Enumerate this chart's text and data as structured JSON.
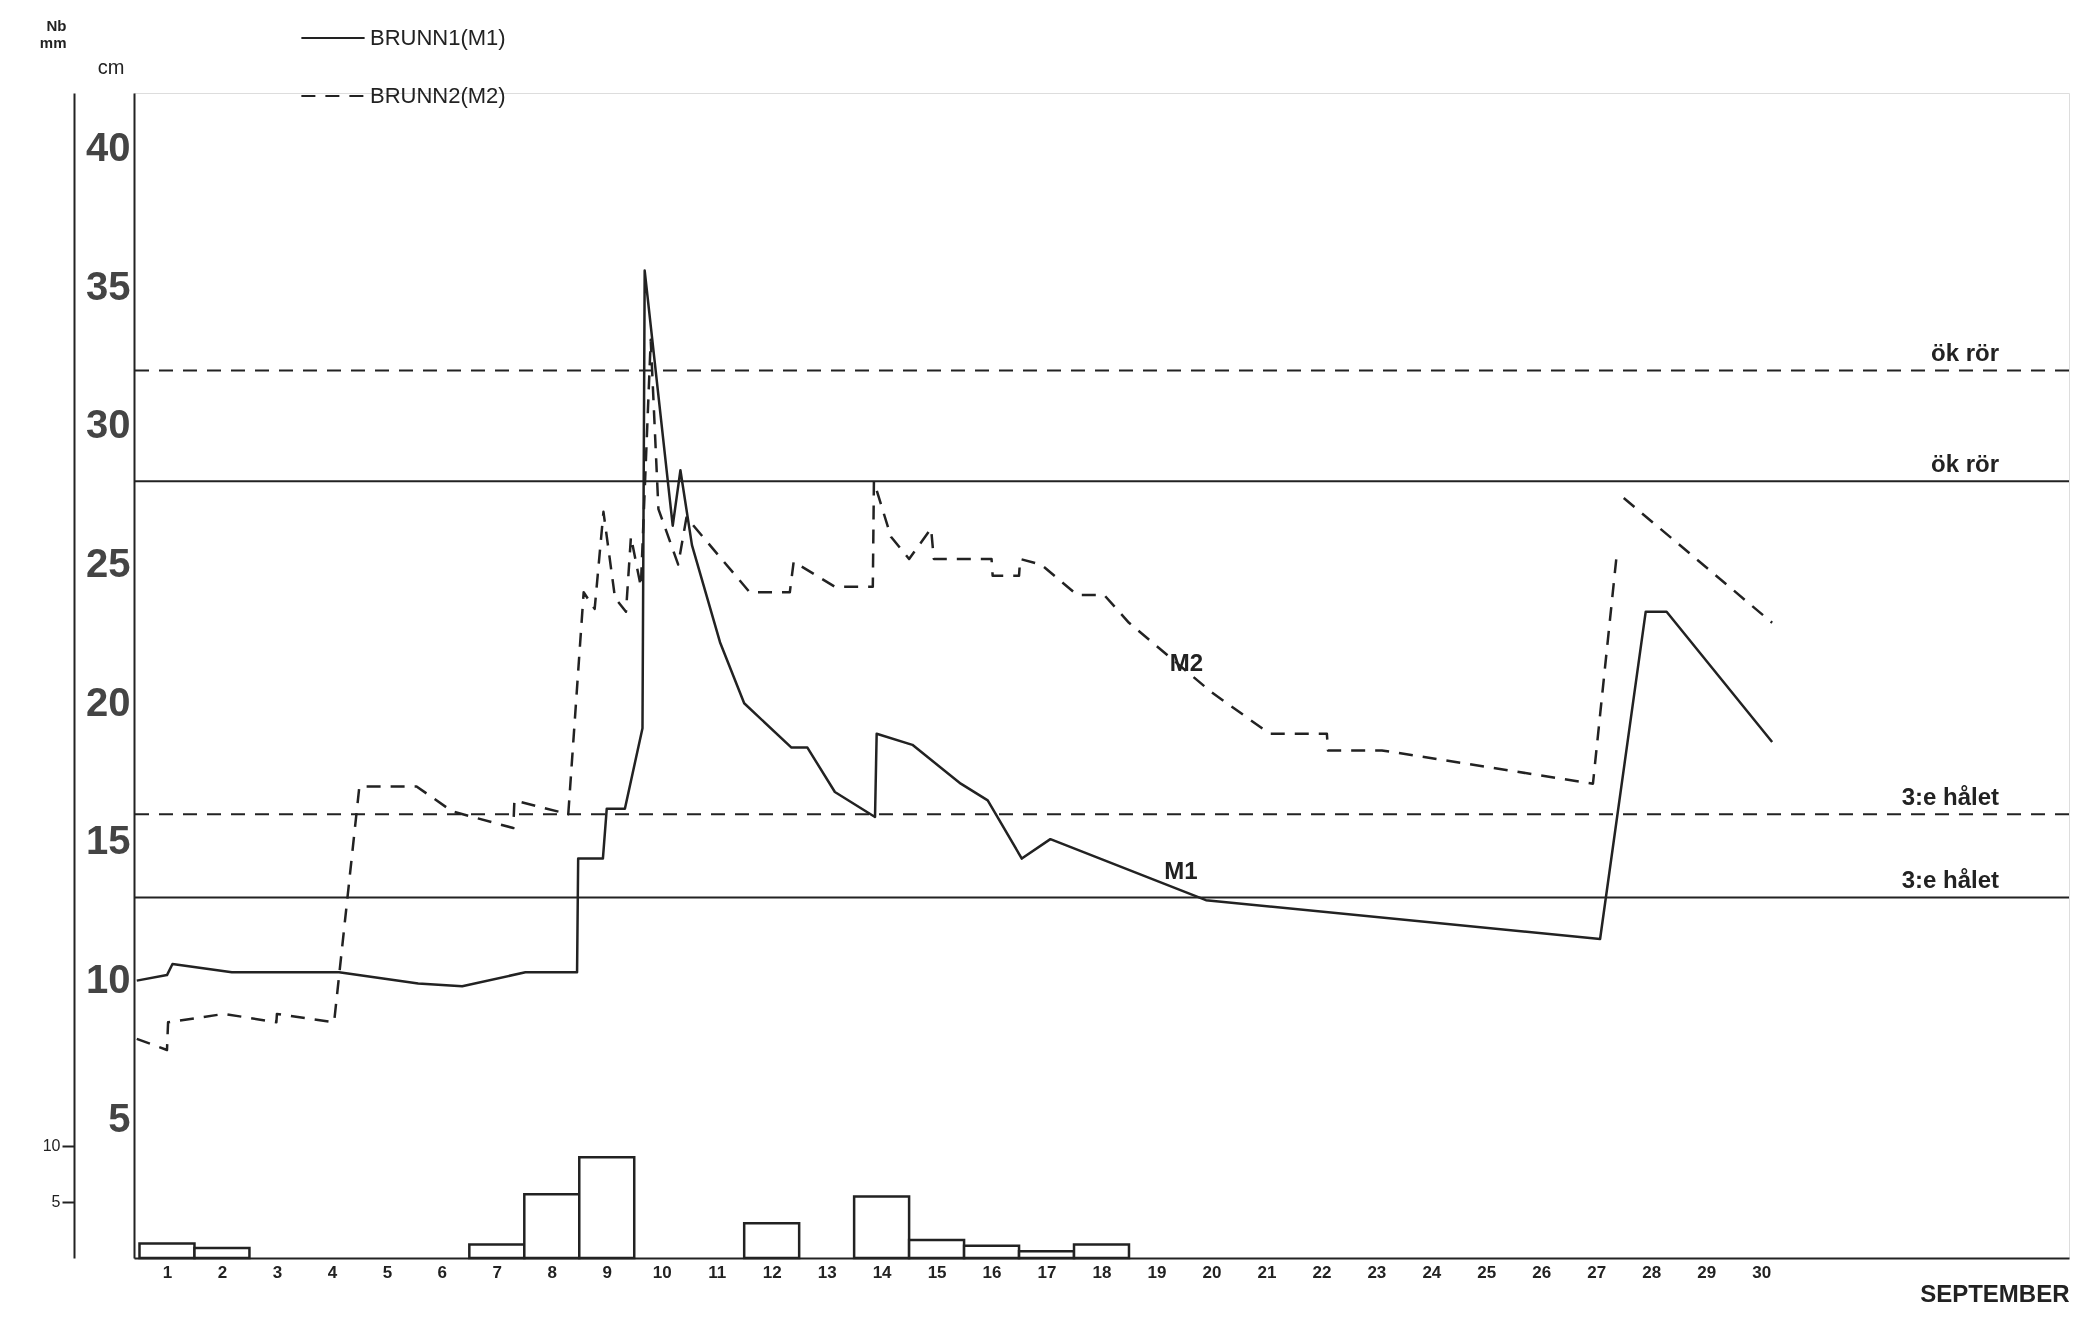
{
  "chart_data": {
    "type": "line",
    "xlabel": "SEPTEMBER",
    "ylabel": "cm",
    "y2label": "Nb mm",
    "xlim": [
      0.4,
      35.6
    ],
    "xticks": [
      1,
      2,
      3,
      4,
      5,
      6,
      7,
      8,
      9,
      10,
      11,
      12,
      13,
      14,
      15,
      16,
      17,
      18,
      19,
      20,
      21,
      22,
      23,
      24,
      25,
      26,
      27,
      28,
      29,
      30
    ],
    "ylim": [
      0,
      42
    ],
    "yticks": [
      5,
      10,
      15,
      20,
      25,
      30,
      35,
      40
    ],
    "y2lim": [
      0,
      104
    ],
    "y2ticks": [
      5,
      10
    ],
    "grid": false,
    "legend": "top left",
    "marker": "none",
    "series": [
      {
        "name": "BRUNN1(M1)",
        "color": "#222222",
        "line_style": "solid",
        "x": [
          0.45,
          1.0,
          1.1,
          2.18,
          4.13,
          5.57,
          6.37,
          7.52,
          8.46,
          8.48,
          8.93,
          9.0,
          9.33,
          9.65,
          9.69,
          10.2,
          10.34,
          10.55,
          11.06,
          11.5,
          12.36,
          12.65,
          13.15,
          13.88,
          13.91,
          14.56,
          15.44,
          15.93,
          16.55,
          17.07,
          19.9,
          27.07,
          27.9,
          28.28,
          30.2
        ],
        "values": [
          10.0,
          10.2,
          10.6,
          10.3,
          10.3,
          9.9,
          9.8,
          10.3,
          10.3,
          14.4,
          14.4,
          16.2,
          16.2,
          19.1,
          35.6,
          26.4,
          28.4,
          25.7,
          22.2,
          20.0,
          18.4,
          18.4,
          16.8,
          15.9,
          18.9,
          18.5,
          17.1,
          16.5,
          14.4,
          15.1,
          12.9,
          11.5,
          23.3,
          23.3,
          18.6
        ]
      },
      {
        "name": "BRUNN2(M2)",
        "color": "#222222",
        "line_style": "dashed",
        "x": [
          0.45,
          1.0,
          1.02,
          2.04,
          2.99,
          3.0,
          4.04,
          4.5,
          5.54,
          6.19,
          7.3,
          7.32,
          8.3,
          8.58,
          8.78,
          8.94,
          9.15,
          9.35,
          9.44,
          9.62,
          9.8,
          9.94,
          10.3,
          10.45,
          11.6,
          12.33,
          12.4,
          13.15,
          13.84,
          13.86,
          14.17,
          14.5,
          14.9,
          14.95,
          16.0,
          16.02,
          16.5,
          16.52,
          16.9,
          17.56,
          18.05,
          18.5,
          20.0,
          21.06,
          22.1,
          22.12,
          23.1,
          26.94,
          27.38,
          27.45,
          27.5,
          30.2
        ],
        "values": [
          7.9,
          7.5,
          8.5,
          8.8,
          8.5,
          8.8,
          8.5,
          17.0,
          17.0,
          16.1,
          15.5,
          16.5,
          16.0,
          24.0,
          23.4,
          26.9,
          23.8,
          23.3,
          26.0,
          24.2,
          33.1,
          27.0,
          25.0,
          26.7,
          24.0,
          24.0,
          25.1,
          24.2,
          24.2,
          28.0,
          26.0,
          25.2,
          26.3,
          25.2,
          25.2,
          24.6,
          24.6,
          25.2,
          25.0,
          23.9,
          23.9,
          22.9,
          20.4,
          18.9,
          18.9,
          18.3,
          18.3,
          17.1,
          25.5,
          null,
          27.4,
          22.9
        ]
      },
      {
        "type": "bar",
        "axis": "y2",
        "color": "#ffffff",
        "x": [
          1,
          2,
          7,
          8,
          9,
          12,
          14,
          15,
          16,
          17,
          18
        ],
        "values": [
          1.3,
          0.9,
          1.2,
          5.7,
          9.0,
          3.1,
          5.5,
          1.6,
          1.1,
          0.6,
          1.2
        ]
      }
    ],
    "ref_lines": [
      {
        "axis": "y",
        "value": 32,
        "label": "ök rör",
        "line_style": "dashed",
        "color": "#222222"
      },
      {
        "axis": "y",
        "value": 28,
        "label": "ök rör",
        "line_style": "solid",
        "color": "#222222"
      },
      {
        "axis": "y",
        "value": 16,
        "label": "3:e hålet",
        "line_style": "dashed",
        "color": "#222222"
      },
      {
        "axis": "y",
        "value": 13,
        "label": "3:e hålet",
        "line_style": "solid",
        "color": "#222222"
      }
    ],
    "annotations": [
      {
        "text": "M1",
        "x": 19.9,
        "y": 12.9
      },
      {
        "text": "M2",
        "x": 20.0,
        "y": 20.4
      }
    ]
  }
}
